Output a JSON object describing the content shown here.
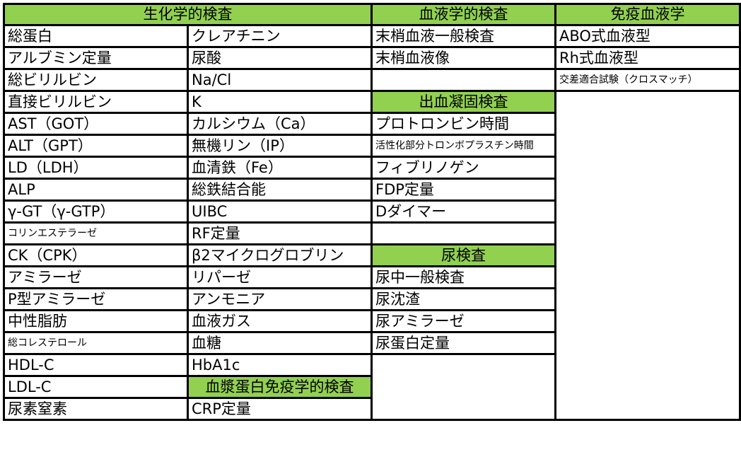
{
  "colors": {
    "header_bg": "#92d050",
    "border": "#000000"
  },
  "biochem": {
    "title": "生化学的検査",
    "col1": [
      "総蛋白",
      "アルブミン定量",
      "総ビリルビン",
      "直接ビリルビン",
      "AST（GOT）",
      "ALT（GPT）",
      "LD（LDH）",
      "ALP",
      "γ-GT（γ-GTP）",
      "コリンエステラーゼ",
      "CK（CPK）",
      "アミラーゼ",
      "P型アミラーゼ",
      "中性脂肪",
      "総コレステロール",
      "HDL-C",
      "LDL-C",
      "尿素窒素"
    ],
    "col2": [
      "クレアチニン",
      "尿酸",
      "Na/Cl",
      "K",
      "カルシウム（Ca）",
      "無機リン（IP）",
      "血清鉄（Fe）",
      "総鉄結合能",
      "UIBC",
      "RF定量",
      "β2マイクログロブリン",
      "リパーゼ",
      "アンモニア",
      "血液ガス",
      "血糖",
      "HbA1c"
    ]
  },
  "plasma": {
    "title": "血漿蛋白免疫学的検査",
    "items": [
      "CRP定量"
    ]
  },
  "hematology": {
    "title": "血液学的検査",
    "items": [
      "末梢血液一般検査",
      "末梢血液像"
    ]
  },
  "coagulation": {
    "title": "出血凝固検査",
    "items": [
      "プロトロンビン時間",
      "活性化部分トロンボプラスチン時間",
      "フィブリノゲン",
      "FDP定量",
      "Dダイマー"
    ]
  },
  "urine": {
    "title": "尿検査",
    "items": [
      "尿中一般検査",
      "尿沈渣",
      "尿アミラーゼ",
      "尿蛋白定量"
    ]
  },
  "immuno_hematology": {
    "title": "免疫血液学",
    "items": [
      "ABO式血液型",
      "Rh式血液型",
      "交差適合試験（クロスマッチ）"
    ]
  }
}
